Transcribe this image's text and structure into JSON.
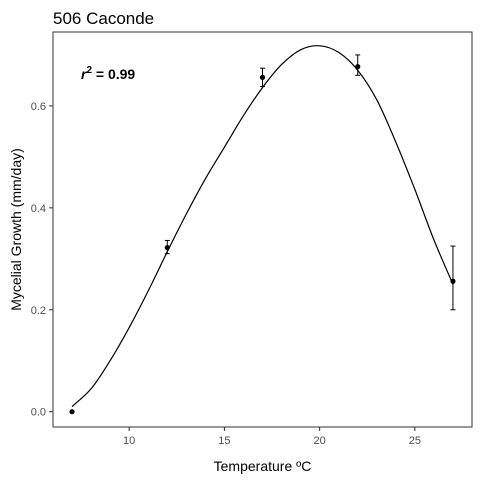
{
  "chart_data": {
    "type": "scatter",
    "title": "506 Caconde",
    "xlabel": "Temperature ºC",
    "ylabel": "Mycelial Growth (mm/day)",
    "xlim": [
      6.0,
      28.0
    ],
    "ylim": [
      -0.03,
      0.745
    ],
    "xticks": [
      10,
      15,
      20,
      25
    ],
    "yticks": [
      0.0,
      0.2,
      0.4,
      0.6
    ],
    "ytick_labels": [
      "0.0",
      "0.2",
      "0.4",
      "0.6"
    ],
    "grid": false,
    "annotation": {
      "r_symbol": "r",
      "r_exponent": "2",
      "text": " = 0.99"
    },
    "points": [
      {
        "x": 7,
        "y": 0.0,
        "err_low": 0.0,
        "err_high": 0.0
      },
      {
        "x": 12,
        "y": 0.322,
        "err_low": 0.31,
        "err_high": 0.336
      },
      {
        "x": 17,
        "y": 0.656,
        "err_low": 0.638,
        "err_high": 0.674
      },
      {
        "x": 22,
        "y": 0.677,
        "err_low": 0.66,
        "err_high": 0.7
      },
      {
        "x": 27,
        "y": 0.256,
        "err_low": 0.2,
        "err_high": 0.325
      }
    ],
    "fit_curve": {
      "x": [
        7.0,
        8.0,
        9.0,
        10.0,
        11.0,
        12.0,
        13.0,
        14.0,
        15.0,
        16.0,
        17.0,
        18.0,
        19.0,
        20.0,
        21.0,
        22.0,
        23.0,
        24.0,
        25.0,
        26.0,
        27.0
      ],
      "y": [
        0.01,
        0.045,
        0.1,
        0.165,
        0.237,
        0.314,
        0.388,
        0.457,
        0.519,
        0.581,
        0.636,
        0.681,
        0.71,
        0.718,
        0.705,
        0.67,
        0.612,
        0.529,
        0.436,
        0.337,
        0.25
      ]
    }
  }
}
